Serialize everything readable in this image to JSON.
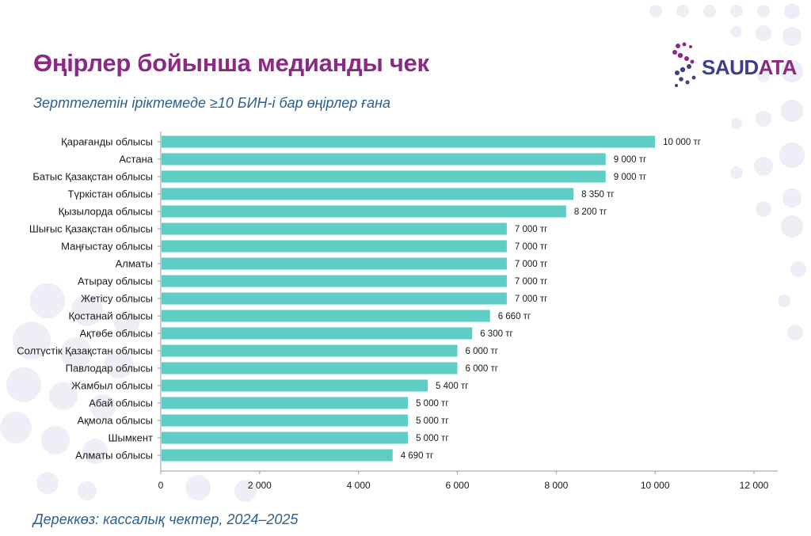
{
  "header": {
    "title": "Өңірлер бойынша медианды чек",
    "subtitle": "Зерттелетін іріктемеде ≥10 БИН-і бар өңірлер ғана",
    "source": "Дереккөз: кассалық чектер, 2024–2025"
  },
  "logo": {
    "part1": "SAUD",
    "part2": "ATA"
  },
  "colors": {
    "bar": "#5ecdc6",
    "title": "#8a2a85",
    "subtitle": "#2d5f8f",
    "axis": "#9a9a9a",
    "text": "#1a1a1a"
  },
  "chart_data": {
    "type": "bar",
    "orientation": "horizontal",
    "title": "Өңірлер бойынша медианды чек",
    "xlabel": "",
    "ylabel": "",
    "xlim": [
      0,
      12000
    ],
    "xticks": [
      0,
      2000,
      4000,
      6000,
      8000,
      10000,
      12000
    ],
    "xtick_labels": [
      "0",
      "2 000",
      "4 000",
      "6 000",
      "8 000",
      "10 000",
      "12 000"
    ],
    "grid": false,
    "categories": [
      "Қарағанды облысы",
      "Астана",
      "Батыс Қазақстан облысы",
      "Түркістан облысы",
      "Қызылорда облысы",
      "Шығыс Қазақстан облысы",
      "Маңғыстау облысы",
      "Алматы",
      "Атырау облысы",
      "Жетісу облысы",
      "Қостанай облысы",
      "Ақтөбе облысы",
      "Солтүстік Қазақстан облысы",
      "Павлодар облысы",
      "Жамбыл облысы",
      "Абай облысы",
      "Ақмола облысы",
      "Шымкент",
      "Алматы облысы"
    ],
    "values": [
      10000,
      9000,
      9000,
      8350,
      8200,
      7000,
      7000,
      7000,
      7000,
      7000,
      6660,
      6300,
      6000,
      6000,
      5400,
      5000,
      5000,
      5000,
      4690
    ],
    "value_labels": [
      "10 000 тг",
      "9 000 тг",
      "9 000 тг",
      "8 350 тг",
      "8 200 тг",
      "7 000 тг",
      "7 000 тг",
      "7 000 тг",
      "7 000 тг",
      "7 000 тг",
      "6 660 тг",
      "6 300 тг",
      "6 000 тг",
      "6 000 тг",
      "5 400 тг",
      "5 000 тг",
      "5 000 тг",
      "5 000 тг",
      "4 690 тг"
    ]
  }
}
